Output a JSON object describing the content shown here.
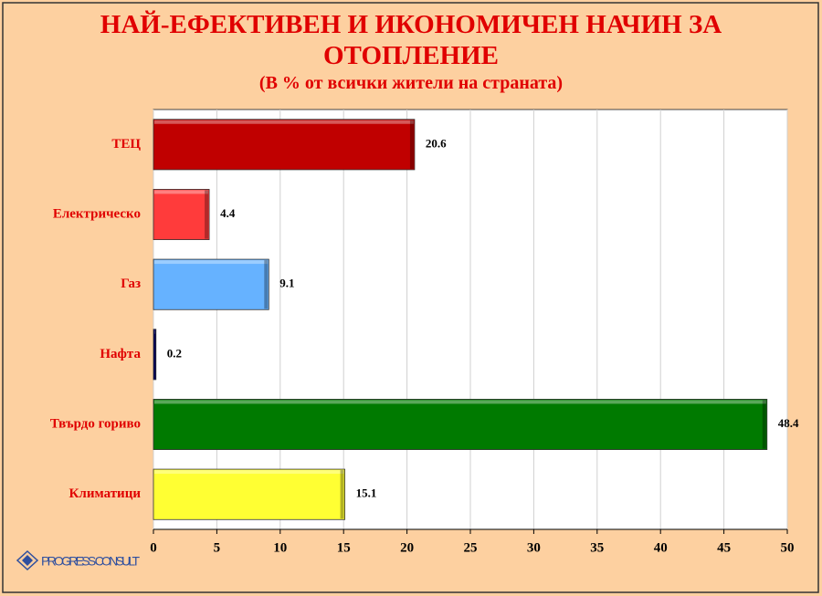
{
  "chart_data": {
    "type": "bar",
    "orientation": "horizontal",
    "title": "НАЙ-ЕФЕКТИВЕН И ИКОНОМИЧЕН НАЧИН ЗА ОТОПЛЕНИЕ",
    "subtitle": "(В % от всички жители на страната)",
    "categories": [
      "ТЕЦ",
      "Електрическо",
      "Газ",
      "Нафта",
      "Твърдо гориво",
      "Климатици"
    ],
    "values": [
      20.6,
      4.4,
      9.1,
      0.2,
      48.4,
      15.1
    ],
    "colors": [
      "#c00000",
      "#ff3b3b",
      "#66b2ff",
      "#000080",
      "#007a00",
      "#ffff33"
    ],
    "xlim": [
      0,
      50
    ],
    "xticks": [
      0,
      5,
      10,
      15,
      20,
      25,
      30,
      35,
      40,
      45,
      50
    ],
    "grid": true,
    "logo": "PROGRESS CONSULT"
  }
}
